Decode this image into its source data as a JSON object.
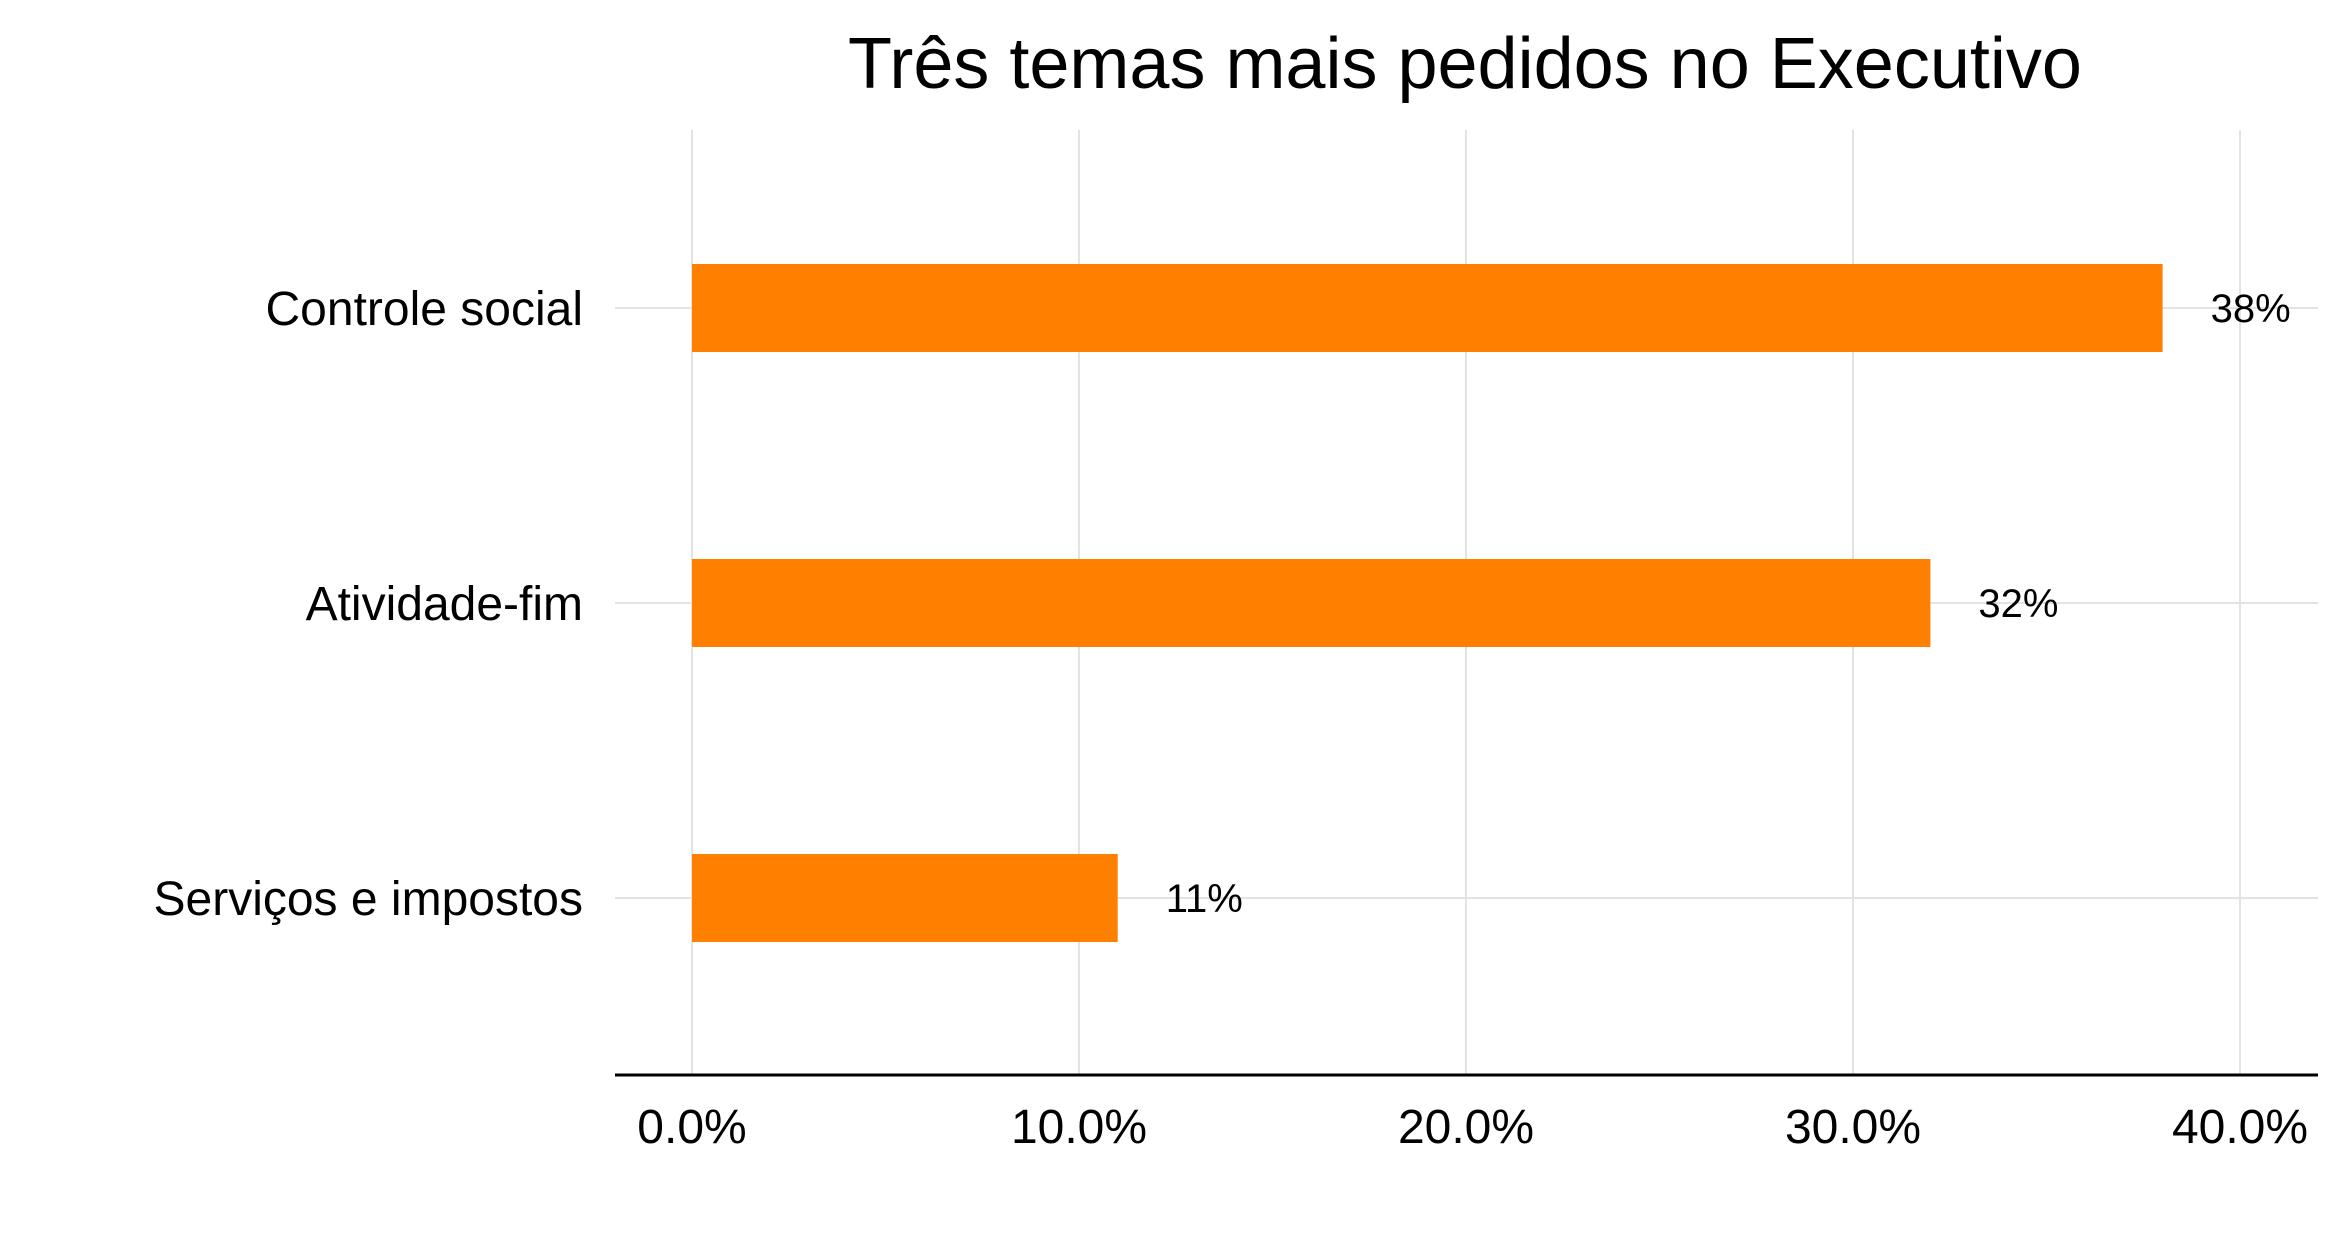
{
  "chart_data": {
    "type": "bar",
    "orientation": "horizontal",
    "title": "Três temas mais pedidos no Executivo",
    "xlabel": "",
    "ylabel": "",
    "categories": [
      "Controle social",
      "Atividade-fim",
      "Serviços e impostos"
    ],
    "values": [
      38,
      32,
      11
    ],
    "data_labels": [
      "38%",
      "32%",
      "11%"
    ],
    "xlim": [
      0,
      40
    ],
    "x_ticks": [
      0,
      10,
      20,
      30,
      40
    ],
    "x_tick_labels": [
      "0.0%",
      "10.0%",
      "20.0%",
      "30.0%",
      "40.0%"
    ],
    "grid": true,
    "legend": "none",
    "bar_color": "#FF8000"
  }
}
